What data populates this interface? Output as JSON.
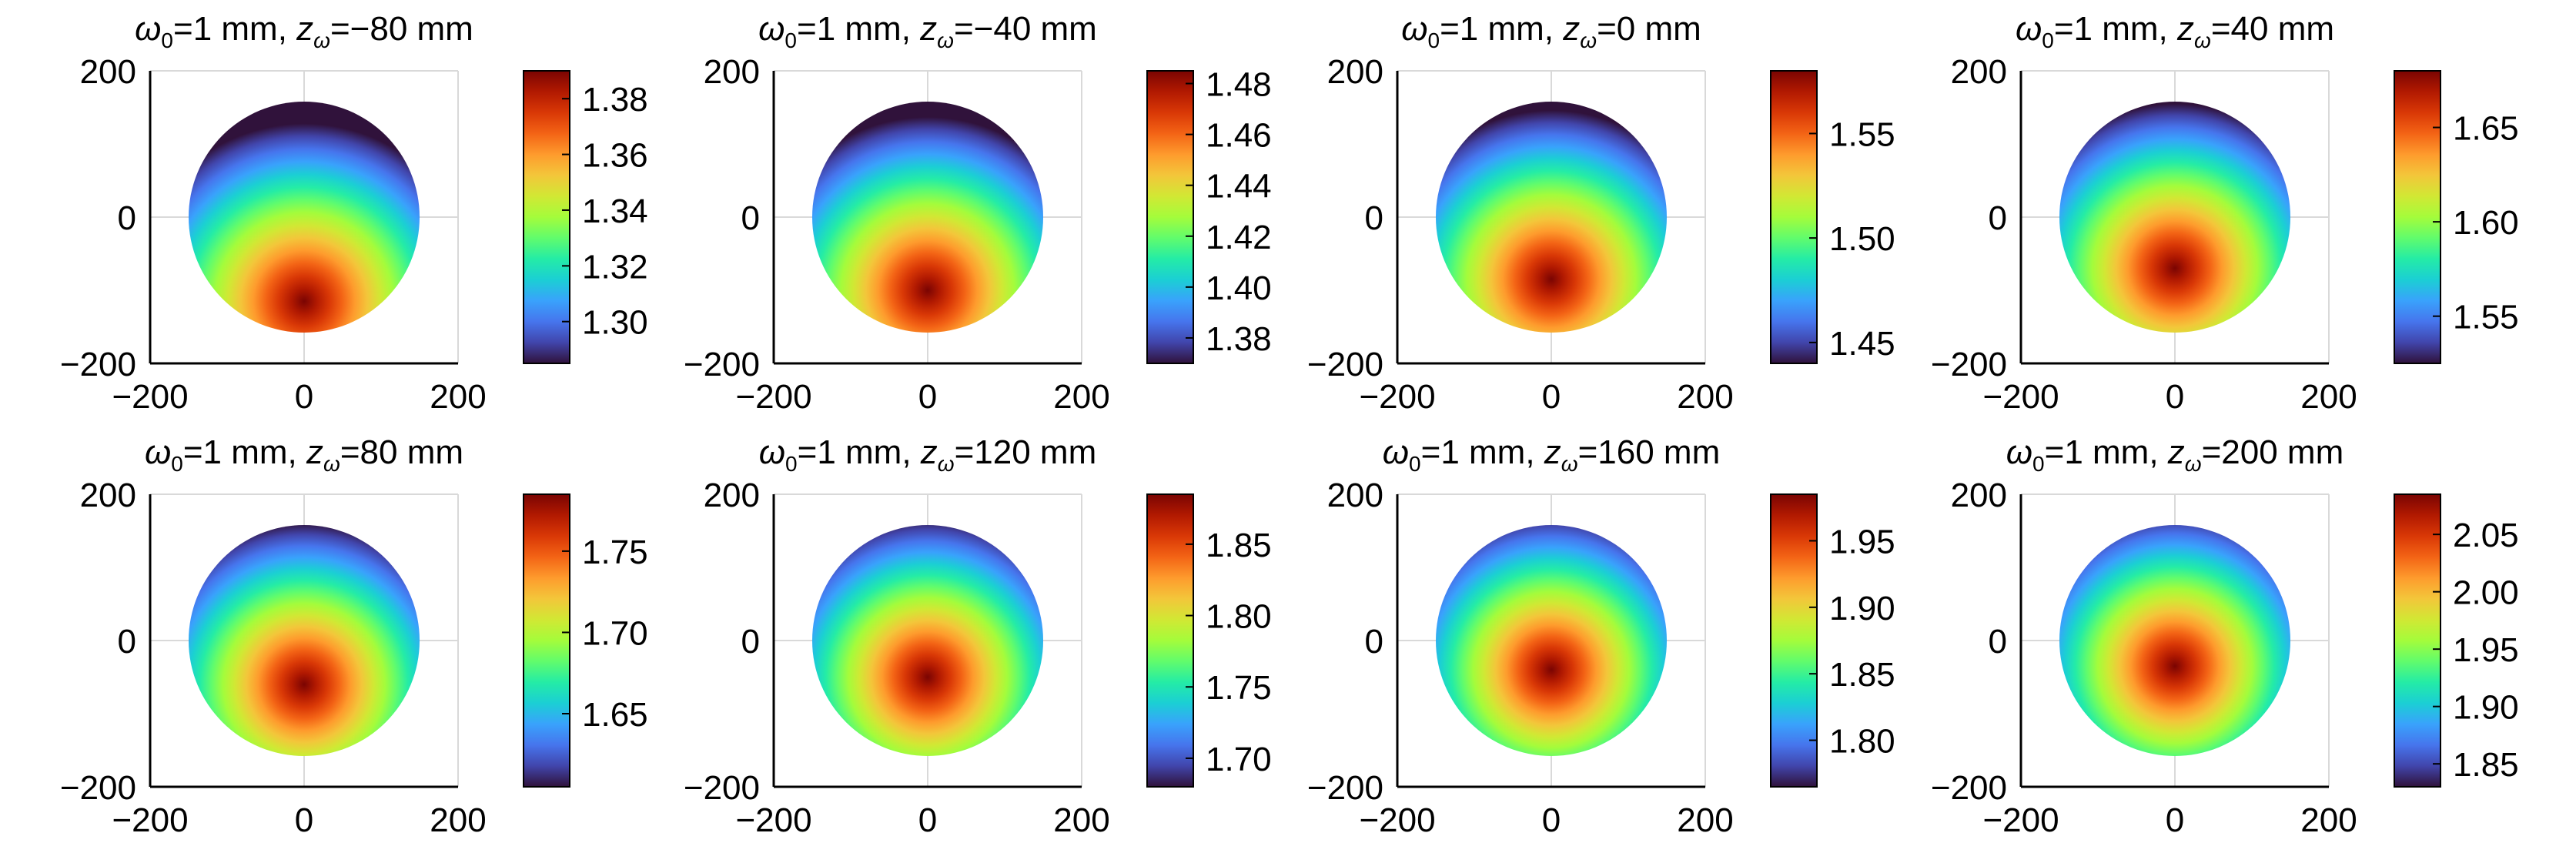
{
  "colormap": [
    "#30123b",
    "#4145ab",
    "#4675ed",
    "#39a2fc",
    "#1bcfd4",
    "#24eca6",
    "#61fc6c",
    "#a4fc3b",
    "#d1e834",
    "#f3c63a",
    "#fe9b2d",
    "#f36315",
    "#d93806",
    "#b11901",
    "#7a0402"
  ],
  "axis_color": "#000000",
  "grid_color": "#d9d9d9",
  "chart_data": [
    {
      "type": "heatmap",
      "title_prefix": "ω",
      "title_middle": "=1 mm, z",
      "title_suffix": "=−80 mm",
      "subscript_0": "0",
      "subscript_w": "ω",
      "xlim": [
        -200,
        200
      ],
      "ylim": [
        -200,
        200
      ],
      "xticks": [
        "−200",
        "0",
        "200"
      ],
      "yticks": [
        "200",
        "0",
        "−200"
      ],
      "aperture_radius": 150,
      "colorbar_range": [
        1.285,
        1.39
      ],
      "colorbar_ticks": [
        "1.38",
        "1.36",
        "1.34",
        "1.32",
        "1.30"
      ],
      "colorbar_tick_values": [
        1.38,
        1.36,
        1.34,
        1.32,
        1.3
      ],
      "peak_y": -115,
      "grid": true
    },
    {
      "type": "heatmap",
      "title_prefix": "ω",
      "title_middle": "=1 mm, z",
      "title_suffix": "=−40 mm",
      "subscript_0": "0",
      "subscript_w": "ω",
      "xlim": [
        -200,
        200
      ],
      "ylim": [
        -200,
        200
      ],
      "xticks": [
        "−200",
        "0",
        "200"
      ],
      "yticks": [
        "200",
        "0",
        "−200"
      ],
      "aperture_radius": 150,
      "colorbar_range": [
        1.37,
        1.485
      ],
      "colorbar_ticks": [
        "1.48",
        "1.46",
        "1.44",
        "1.42",
        "1.40",
        "1.38"
      ],
      "colorbar_tick_values": [
        1.48,
        1.46,
        1.44,
        1.42,
        1.4,
        1.38
      ],
      "peak_y": -100,
      "grid": true
    },
    {
      "type": "heatmap",
      "title_prefix": "ω",
      "title_middle": "=1 mm, z",
      "title_suffix": "=0 mm",
      "subscript_0": "0",
      "subscript_w": "ω",
      "xlim": [
        -200,
        200
      ],
      "ylim": [
        -200,
        200
      ],
      "xticks": [
        "−200",
        "0",
        "200"
      ],
      "yticks": [
        "200",
        "0",
        "−200"
      ],
      "aperture_radius": 150,
      "colorbar_range": [
        1.44,
        1.58
      ],
      "colorbar_ticks": [
        "1.55",
        "1.50",
        "1.45"
      ],
      "colorbar_tick_values": [
        1.55,
        1.5,
        1.45
      ],
      "peak_y": -85,
      "grid": true
    },
    {
      "type": "heatmap",
      "title_prefix": "ω",
      "title_middle": "=1 mm, z",
      "title_suffix": "=40 mm",
      "subscript_0": "0",
      "subscript_w": "ω",
      "xlim": [
        -200,
        200
      ],
      "ylim": [
        -200,
        200
      ],
      "xticks": [
        "−200",
        "0",
        "200"
      ],
      "yticks": [
        "200",
        "0",
        "−200"
      ],
      "aperture_radius": 150,
      "colorbar_range": [
        1.525,
        1.68
      ],
      "colorbar_ticks": [
        "1.65",
        "1.60",
        "1.55"
      ],
      "colorbar_tick_values": [
        1.65,
        1.6,
        1.55
      ],
      "peak_y": -70,
      "grid": true
    },
    {
      "type": "heatmap",
      "title_prefix": "ω",
      "title_middle": "=1 mm, z",
      "title_suffix": "=80 mm",
      "subscript_0": "0",
      "subscript_w": "ω",
      "xlim": [
        -200,
        200
      ],
      "ylim": [
        -200,
        200
      ],
      "xticks": [
        "−200",
        "0",
        "200"
      ],
      "yticks": [
        "200",
        "0",
        "−200"
      ],
      "aperture_radius": 150,
      "colorbar_range": [
        1.605,
        1.785
      ],
      "colorbar_ticks": [
        "1.75",
        "1.70",
        "1.65"
      ],
      "colorbar_tick_values": [
        1.75,
        1.7,
        1.65
      ],
      "peak_y": -60,
      "grid": true
    },
    {
      "type": "heatmap",
      "title_prefix": "ω",
      "title_middle": "=1 mm, z",
      "title_suffix": "=120 mm",
      "subscript_0": "0",
      "subscript_w": "ω",
      "xlim": [
        -200,
        200
      ],
      "ylim": [
        -200,
        200
      ],
      "xticks": [
        "−200",
        "0",
        "200"
      ],
      "yticks": [
        "200",
        "0",
        "−200"
      ],
      "aperture_radius": 150,
      "colorbar_range": [
        1.68,
        1.885
      ],
      "colorbar_ticks": [
        "1.85",
        "1.80",
        "1.75",
        "1.70"
      ],
      "colorbar_tick_values": [
        1.85,
        1.8,
        1.75,
        1.7
      ],
      "peak_y": -50,
      "grid": true
    },
    {
      "type": "heatmap",
      "title_prefix": "ω",
      "title_middle": "=1 mm, z",
      "title_suffix": "=160 mm",
      "subscript_0": "0",
      "subscript_w": "ω",
      "xlim": [
        -200,
        200
      ],
      "ylim": [
        -200,
        200
      ],
      "xticks": [
        "−200",
        "0",
        "200"
      ],
      "yticks": [
        "200",
        "0",
        "−200"
      ],
      "aperture_radius": 150,
      "colorbar_range": [
        1.765,
        1.985
      ],
      "colorbar_ticks": [
        "1.95",
        "1.90",
        "1.85",
        "1.80"
      ],
      "colorbar_tick_values": [
        1.95,
        1.9,
        1.85,
        1.8
      ],
      "peak_y": -40,
      "grid": true
    },
    {
      "type": "heatmap",
      "title_prefix": "ω",
      "title_middle": "=1 mm, z",
      "title_suffix": "=200 mm",
      "subscript_0": "0",
      "subscript_w": "ω",
      "xlim": [
        -200,
        200
      ],
      "ylim": [
        -200,
        200
      ],
      "xticks": [
        "−200",
        "0",
        "200"
      ],
      "yticks": [
        "200",
        "0",
        "−200"
      ],
      "aperture_radius": 150,
      "colorbar_range": [
        1.83,
        2.085
      ],
      "colorbar_ticks": [
        "2.05",
        "2.00",
        "1.95",
        "1.90",
        "1.85"
      ],
      "colorbar_tick_values": [
        2.05,
        2.0,
        1.95,
        1.9,
        1.85
      ],
      "peak_y": -35,
      "grid": true
    }
  ]
}
